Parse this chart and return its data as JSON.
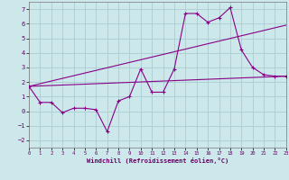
{
  "xlabel": "Windchill (Refroidissement éolien,°C)",
  "background_color": "#cce8ea",
  "grid_color": "#aacdd2",
  "line_color": "#880088",
  "xlim": [
    0,
    23
  ],
  "ylim": [
    -2.5,
    7.5
  ],
  "yticks": [
    -2,
    -1,
    0,
    1,
    2,
    3,
    4,
    5,
    6,
    7
  ],
  "xticks": [
    0,
    1,
    2,
    3,
    4,
    5,
    6,
    7,
    8,
    9,
    10,
    11,
    12,
    13,
    14,
    15,
    16,
    17,
    18,
    19,
    20,
    21,
    22,
    23
  ],
  "line1_x": [
    0,
    1,
    2,
    3,
    4,
    5,
    6,
    7,
    8,
    9,
    10,
    11,
    12,
    13,
    14,
    15,
    16,
    17,
    18,
    19,
    20,
    21,
    22,
    23
  ],
  "line1_y": [
    1.7,
    0.6,
    0.6,
    -0.1,
    0.2,
    0.2,
    0.1,
    -1.4,
    0.7,
    1.0,
    2.9,
    1.3,
    1.3,
    2.9,
    6.7,
    6.7,
    6.1,
    6.4,
    7.1,
    4.2,
    3.0,
    2.5,
    2.4,
    2.4
  ],
  "line2_x": [
    0,
    23
  ],
  "line2_y": [
    1.7,
    2.4
  ],
  "line3_x": [
    0,
    23
  ],
  "line3_y": [
    1.7,
    5.9
  ]
}
